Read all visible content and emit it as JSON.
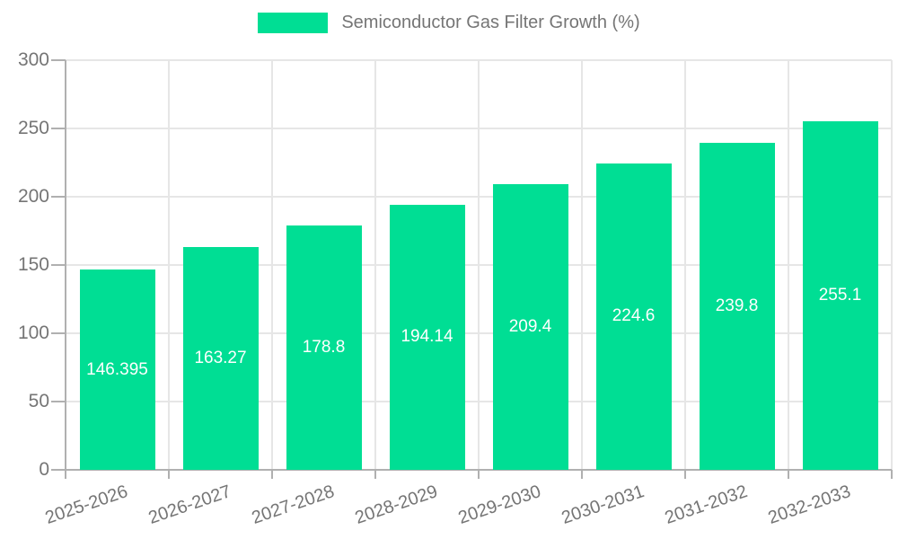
{
  "chart_data": {
    "type": "bar",
    "title": "Semiconductor Gas Filter Growth (%)",
    "legend": {
      "position": "top",
      "entries": [
        "Semiconductor Gas Filter Growth (%)"
      ]
    },
    "categories": [
      "2025-2026",
      "2026-2027",
      "2027-2028",
      "2028-2029",
      "2029-2030",
      "2030-2031",
      "2031-2032",
      "2032-2033"
    ],
    "values": [
      146.395,
      163.27,
      178.8,
      194.14,
      209.4,
      224.6,
      239.8,
      255.1
    ],
    "values_display": [
      "146.395",
      "163.27",
      "178.8",
      "194.14",
      "209.4",
      "224.6",
      "239.8",
      "255.1"
    ],
    "yticks": [
      0,
      50,
      100,
      150,
      200,
      250,
      300
    ],
    "ytick_labels": [
      "0",
      "50",
      "100",
      "150",
      "200",
      "250",
      "300"
    ],
    "ylim": [
      0,
      300
    ],
    "xlabel": "",
    "ylabel": "",
    "grid": true,
    "x_label_rotation_deg": -19
  },
  "colors": {
    "bar": "#00de94",
    "axis": "#b0b0b0",
    "grid": "#e6e6e6",
    "axis_text": "#757575",
    "value_text": "#ffffff",
    "background": "#ffffff"
  }
}
